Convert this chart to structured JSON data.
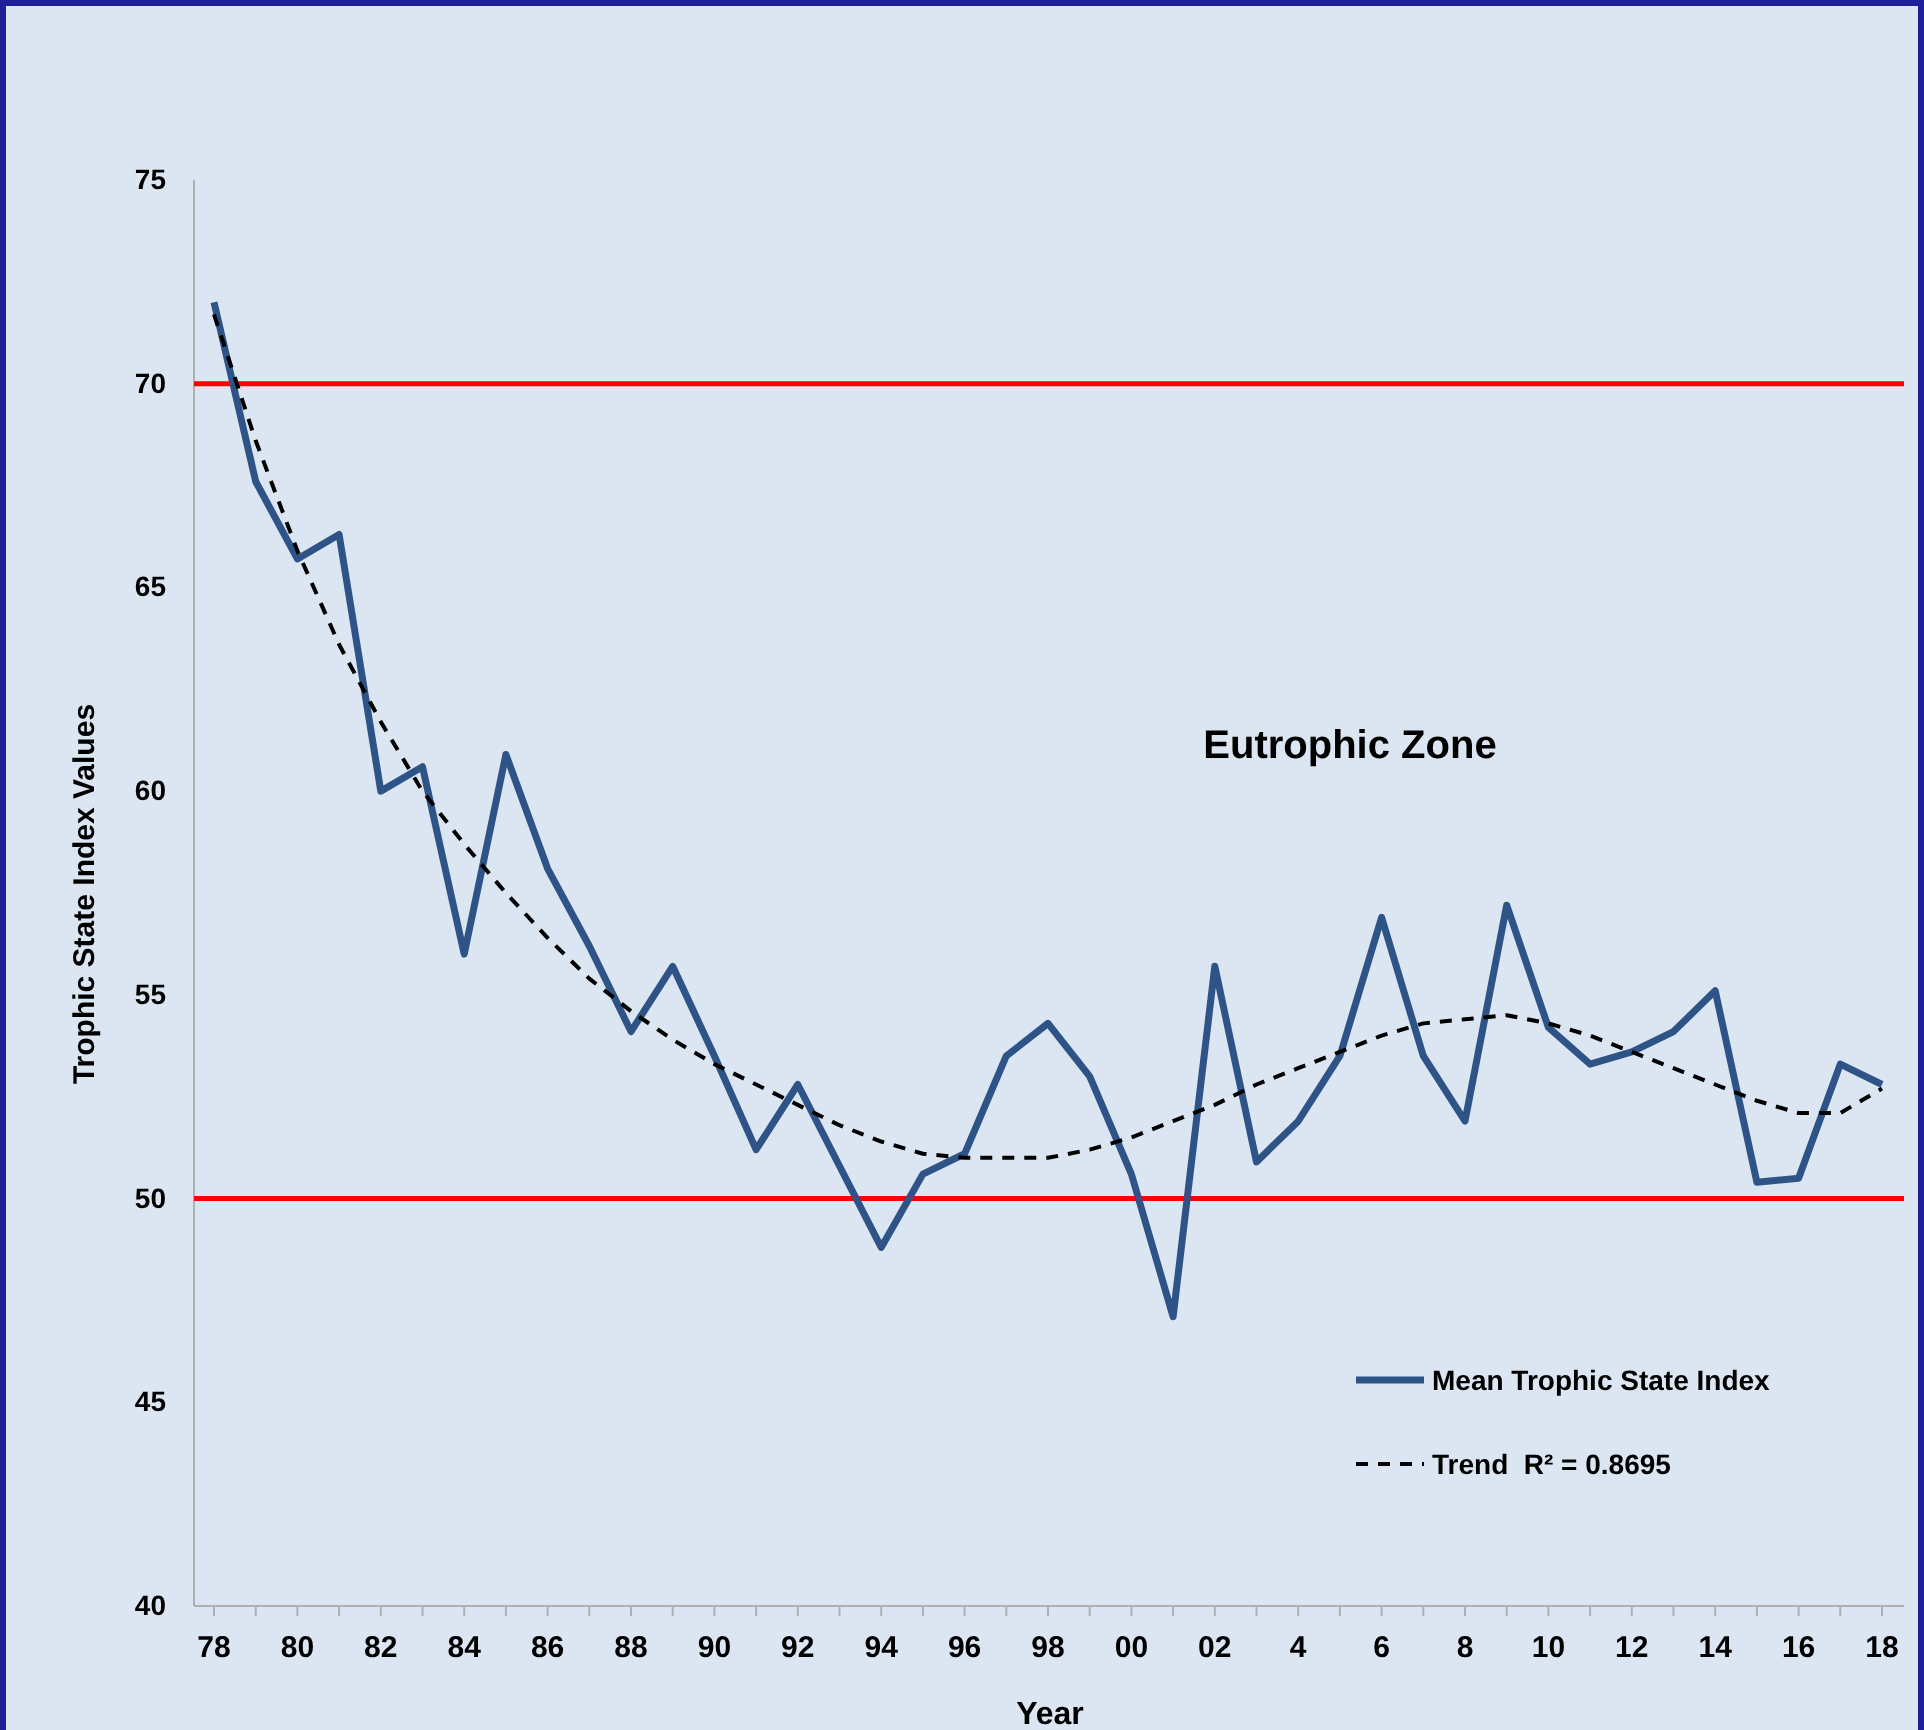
{
  "chart_data": {
    "type": "line",
    "xlabel": "Year",
    "ylabel": "Trophic State Index Values",
    "categories": [
      "78",
      null,
      "80",
      null,
      "82",
      null,
      "84",
      null,
      "86",
      null,
      "88",
      null,
      "90",
      null,
      "92",
      null,
      "94",
      null,
      "96",
      null,
      "98",
      null,
      "00",
      null,
      "02",
      null,
      "4",
      null,
      "6",
      null,
      "8",
      null,
      "10",
      null,
      "12",
      null,
      "14",
      null,
      "16",
      null,
      "18"
    ],
    "ylim": [
      40,
      75
    ],
    "yticks": [
      40,
      45,
      50,
      55,
      60,
      65,
      70,
      75
    ],
    "grid": false,
    "legend": "bottom right",
    "marker": "none",
    "series": [
      {
        "name": "Mean Trophic State Index",
        "color": "#2e5487",
        "line_style": "solid",
        "values": [
          72.0,
          67.6,
          65.7,
          66.3,
          60.0,
          60.6,
          56.0,
          60.9,
          58.1,
          56.2,
          54.1,
          55.7,
          53.5,
          51.2,
          52.8,
          50.8,
          48.8,
          50.6,
          51.1,
          53.5,
          54.3,
          53.0,
          50.6,
          47.1,
          55.7,
          50.9,
          51.9,
          53.5,
          56.9,
          53.5,
          51.9,
          57.2,
          54.2,
          53.3,
          53.6,
          54.1,
          55.1,
          50.4,
          50.5,
          53.3,
          52.8
        ]
      },
      {
        "name": "Trend  R² = 0.8695",
        "color": "#000000",
        "line_style": "dashed",
        "values": [
          71.7,
          68.6,
          65.9,
          63.6,
          61.7,
          60.0,
          58.7,
          57.5,
          56.4,
          55.4,
          54.6,
          53.9,
          53.3,
          52.8,
          52.3,
          51.8,
          51.4,
          51.1,
          51.0,
          51.0,
          51.0,
          51.2,
          51.5,
          51.9,
          52.3,
          52.8,
          53.2,
          53.6,
          54.0,
          54.3,
          54.4,
          54.5,
          54.3,
          54.0,
          53.6,
          53.2,
          52.8,
          52.4,
          52.1,
          52.1,
          52.7
        ]
      }
    ],
    "ref_lines": [
      {
        "axis": "y",
        "value": 70,
        "color": "#ff0000"
      },
      {
        "axis": "y",
        "value": 50,
        "color": "#ff0000"
      }
    ],
    "annotations": [
      "Eutrophic Zone"
    ]
  }
}
